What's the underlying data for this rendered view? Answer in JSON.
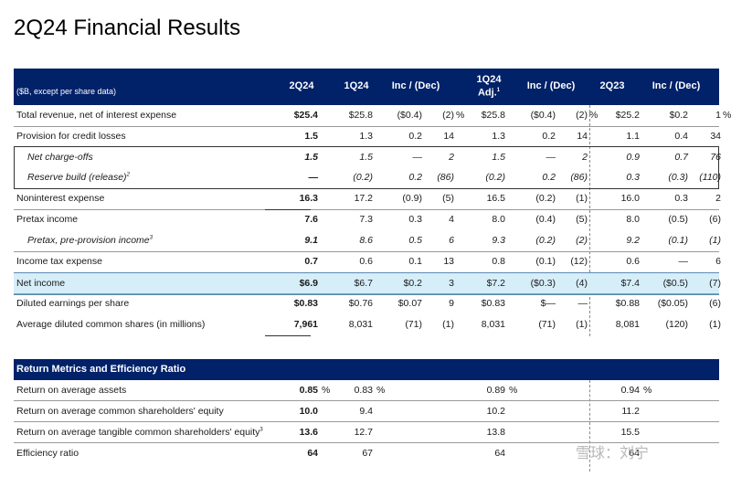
{
  "title": "2Q24 Financial Results",
  "table": {
    "subtitle": "($B, except per share data)",
    "columns": [
      {
        "label": "2Q24",
        "sup": ""
      },
      {
        "label": "1Q24",
        "sup": ""
      },
      {
        "label": "Inc / (Dec)",
        "sup": ""
      },
      {
        "label": "1Q24",
        "label2": "Adj.",
        "sup": "1"
      },
      {
        "label": "Inc / (Dec)",
        "sup": ""
      },
      {
        "label": "2Q23",
        "sup": ""
      },
      {
        "label": "Inc / (Dec)",
        "sup": ""
      }
    ],
    "rows": [
      {
        "label": "Total revenue, net of interest expense",
        "sup": "",
        "v": [
          "$25.4",
          "$25.8",
          "($0.4)",
          "(2)",
          "%",
          "$25.8",
          "($0.4)",
          "(2)",
          "%",
          "$25.2",
          "$0.2",
          "1",
          "%"
        ]
      },
      {
        "label": "Provision for credit losses",
        "sup": "",
        "v": [
          "1.5",
          "1.3",
          "0.2",
          "14",
          "",
          "1.3",
          "0.2",
          "14",
          "",
          "1.1",
          "0.4",
          "34",
          ""
        ]
      },
      {
        "label": "Net charge-offs",
        "sup": "",
        "v": [
          "1.5",
          "1.5",
          "—",
          "2",
          "",
          "1.5",
          "—",
          "2",
          "",
          "0.9",
          "0.7",
          "76",
          ""
        ]
      },
      {
        "label": "Reserve build (release)",
        "sup": "2",
        "v": [
          "—",
          "(0.2)",
          "0.2",
          "(86)",
          "",
          "(0.2)",
          "0.2",
          "(86)",
          "",
          "0.3",
          "(0.3)",
          "(110)",
          ""
        ]
      },
      {
        "label": "Noninterest expense",
        "sup": "",
        "v": [
          "16.3",
          "17.2",
          "(0.9)",
          "(5)",
          "",
          "16.5",
          "(0.2)",
          "(1)",
          "",
          "16.0",
          "0.3",
          "2",
          ""
        ]
      },
      {
        "label": "Pretax income",
        "sup": "",
        "v": [
          "7.6",
          "7.3",
          "0.3",
          "4",
          "",
          "8.0",
          "(0.4)",
          "(5)",
          "",
          "8.0",
          "(0.5)",
          "(6)",
          ""
        ]
      },
      {
        "label": "Pretax, pre-provision income",
        "sup": "3",
        "v": [
          "9.1",
          "8.6",
          "0.5",
          "6",
          "",
          "9.3",
          "(0.2)",
          "(2)",
          "",
          "9.2",
          "(0.1)",
          "(1)",
          ""
        ]
      },
      {
        "label": "Income tax expense",
        "sup": "",
        "v": [
          "0.7",
          "0.6",
          "0.1",
          "13",
          "",
          "0.8",
          "(0.1)",
          "(12)",
          "",
          "0.6",
          "—",
          "6",
          ""
        ]
      },
      {
        "label": "Net income",
        "sup": "",
        "v": [
          "$6.9",
          "$6.7",
          "$0.2",
          "3",
          "",
          "$7.2",
          "($0.3)",
          "(4)",
          "",
          "$7.4",
          "($0.5)",
          "(7)",
          ""
        ]
      },
      {
        "label": "Diluted earnings per share",
        "sup": "",
        "v": [
          "$0.83",
          "$0.76",
          "$0.07",
          "9",
          "",
          "$0.83",
          "$—",
          "—",
          "",
          "$0.88",
          "($0.05)",
          "(6)",
          ""
        ]
      },
      {
        "label": "Average diluted common shares (in millions)",
        "sup": "",
        "v": [
          "7,961",
          "8,031",
          "(71)",
          "(1)",
          "",
          "8,031",
          "(71)",
          "(1)",
          "",
          "8,081",
          "(120)",
          "(1)",
          ""
        ]
      }
    ]
  },
  "metrics": {
    "header": "Return Metrics and Efficiency Ratio",
    "rows": [
      {
        "label": "Return on average assets",
        "sup": "",
        "v": [
          "0.85",
          "%",
          "0.83",
          "%",
          "0.89",
          "%",
          "0.94",
          "%"
        ]
      },
      {
        "label": "Return on average common shareholders' equity",
        "sup": "",
        "v": [
          "10.0",
          "",
          "9.4",
          "",
          "10.2",
          "",
          "11.2",
          ""
        ]
      },
      {
        "label": "Return on average tangible common shareholders' equity",
        "sup": "3",
        "v": [
          "13.6",
          "",
          "12.7",
          "",
          "13.8",
          "",
          "15.5",
          ""
        ]
      },
      {
        "label": "Efficiency ratio",
        "sup": "",
        "v": [
          "64",
          "",
          "67",
          "",
          "64",
          "",
          "64",
          ""
        ]
      }
    ]
  },
  "watermark": "雪球：刘宁"
}
